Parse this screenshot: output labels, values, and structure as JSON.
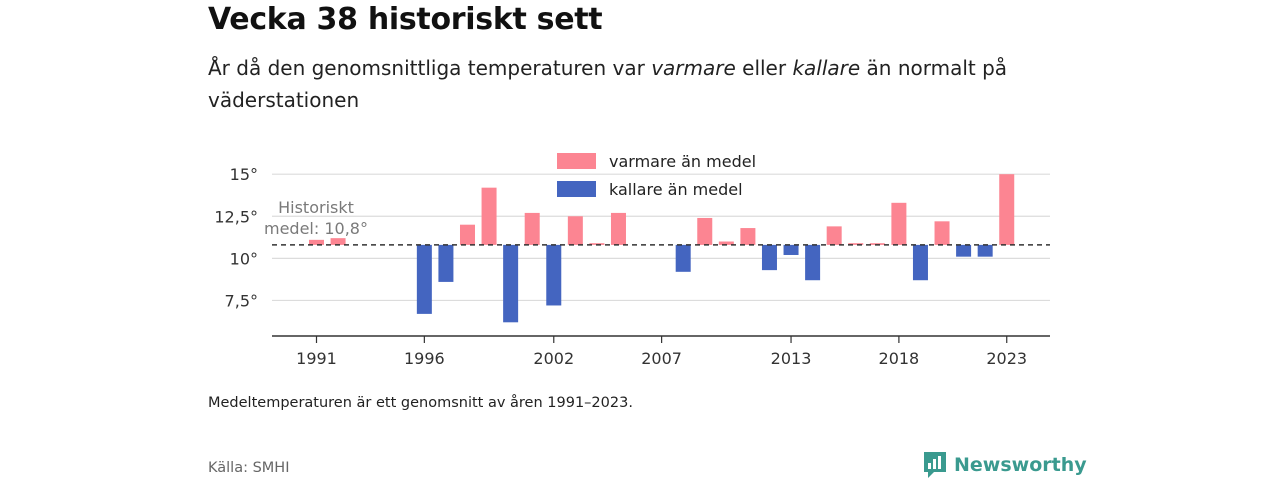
{
  "header": {
    "title": "Vecka 38 historiskt sett",
    "subtitle_a": "År då den genomsnittliga temperaturen var ",
    "subtitle_b": "varmare",
    "subtitle_c": " eller ",
    "subtitle_d": "kallare",
    "subtitle_e": " än normalt på väderstationen"
  },
  "footer": {
    "note": "Medeltemperaturen är ett genomsnitt av åren 1991–2023.",
    "source": "Källa: SMHI",
    "brand": "Newsworthy"
  },
  "colors": {
    "warm": "#fc8592",
    "cold": "#4465c0"
  },
  "chart_data": {
    "type": "bar",
    "baseline": 10.8,
    "baseline_label": [
      "Historiskt",
      "medel: 10,8°"
    ],
    "ylim": [
      5.4,
      15.4
    ],
    "yticks": [
      7.5,
      10,
      12.5,
      15
    ],
    "ytick_labels": [
      "7,5°",
      "10°",
      "12,5°",
      "15°"
    ],
    "xticks": [
      1991,
      1996,
      2002,
      2007,
      2013,
      2018,
      2023
    ],
    "legend": [
      "varmare än medel",
      "kallare än medel"
    ],
    "series": [
      {
        "year": 1991,
        "value": 11.1
      },
      {
        "year": 1992,
        "value": 11.2
      },
      {
        "year": 1996,
        "value": 6.7
      },
      {
        "year": 1997,
        "value": 8.6
      },
      {
        "year": 1998,
        "value": 12.0
      },
      {
        "year": 1999,
        "value": 14.2
      },
      {
        "year": 2000,
        "value": 6.2
      },
      {
        "year": 2001,
        "value": 12.7
      },
      {
        "year": 2002,
        "value": 7.2
      },
      {
        "year": 2003,
        "value": 12.5
      },
      {
        "year": 2004,
        "value": 10.9
      },
      {
        "year": 2005,
        "value": 12.7
      },
      {
        "year": 2008,
        "value": 9.2
      },
      {
        "year": 2009,
        "value": 12.4
      },
      {
        "year": 2010,
        "value": 11.0
      },
      {
        "year": 2011,
        "value": 11.8
      },
      {
        "year": 2012,
        "value": 9.3
      },
      {
        "year": 2013,
        "value": 10.2
      },
      {
        "year": 2014,
        "value": 8.7
      },
      {
        "year": 2015,
        "value": 11.9
      },
      {
        "year": 2016,
        "value": 10.9
      },
      {
        "year": 2017,
        "value": 10.9
      },
      {
        "year": 2018,
        "value": 13.3
      },
      {
        "year": 2019,
        "value": 8.7
      },
      {
        "year": 2020,
        "value": 12.2
      },
      {
        "year": 2021,
        "value": 10.1
      },
      {
        "year": 2022,
        "value": 10.1
      },
      {
        "year": 2023,
        "value": 15.0
      }
    ]
  }
}
